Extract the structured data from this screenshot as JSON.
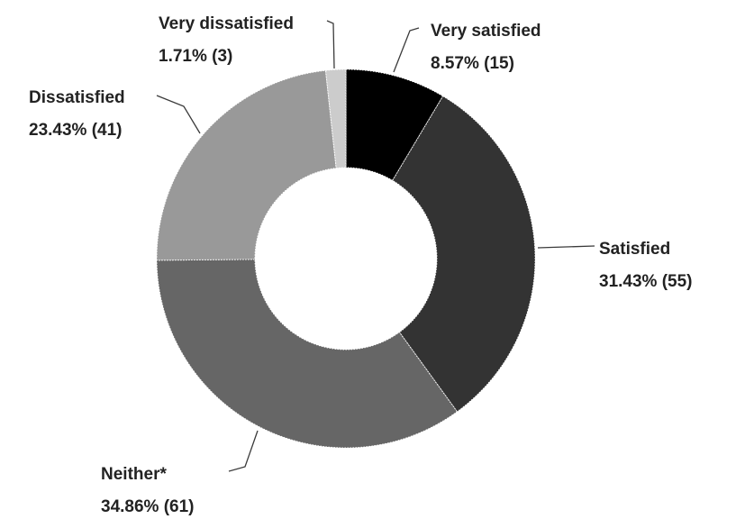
{
  "chart_data": {
    "type": "pie",
    "title": "",
    "categories": [
      "Very satisfied",
      "Satisfied",
      "Neither*",
      "Dissatisfied",
      "Very dissatisfied"
    ],
    "series": [
      {
        "values": [
          8.57,
          31.43,
          34.86,
          23.43,
          1.71
        ],
        "counts": [
          15,
          55,
          61,
          41,
          3
        ]
      }
    ],
    "value_labels": [
      "8.57% (15)",
      "31.43% (55)",
      "34.86% (61)",
      "23.43% (41)",
      "1.71% (3)"
    ],
    "colors": [
      "#000000",
      "#333333",
      "#666666",
      "#999999",
      "#cccccc"
    ],
    "donut": true,
    "legend": "none"
  }
}
